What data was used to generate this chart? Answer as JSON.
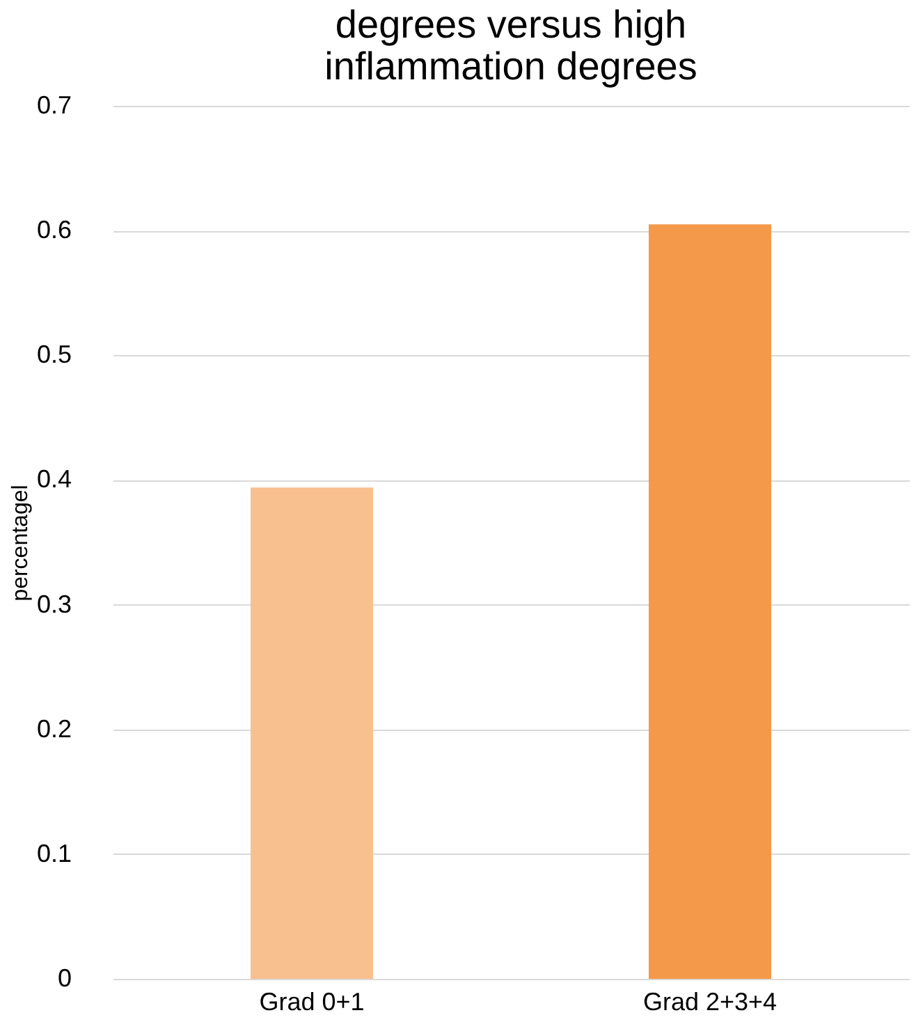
{
  "chart_data": {
    "type": "bar",
    "title": [
      "degrees versus high",
      "inflammation degrees"
    ],
    "ylabel": "percentagel",
    "categories": [
      "Grad 0+1",
      "Grad 2+3+4"
    ],
    "values": [
      0.394,
      0.605
    ],
    "colors": [
      "#f8c08f",
      "#f4994a"
    ],
    "ylim": [
      0,
      0.7
    ],
    "yticks": [
      0,
      0.1,
      0.2,
      0.3,
      0.4,
      0.5,
      0.6,
      0.7
    ],
    "grid": "y"
  }
}
